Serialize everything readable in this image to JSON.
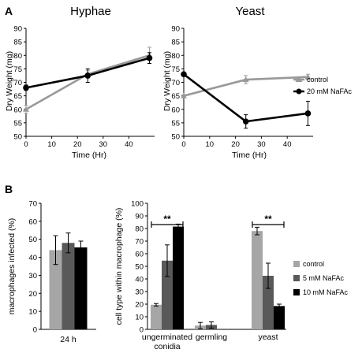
{
  "panel_labels": {
    "a": "A",
    "b": "B"
  },
  "colors": {
    "control": "#999999",
    "nafac": "#000000",
    "bar_control": "#a6a6a6",
    "bar_5mm": "#595959",
    "bar_10mm": "#000000"
  },
  "chart_data": [
    {
      "type": "line",
      "title": "Hyphae",
      "xlabel": "Time (Hr)",
      "ylabel": "Dry Weight (mg)",
      "xlim": [
        0,
        50
      ],
      "ylim": [
        50,
        90
      ],
      "xticks": [
        0,
        10,
        20,
        30,
        40
      ],
      "yticks": [
        50,
        55,
        60,
        65,
        70,
        75,
        80,
        85,
        90
      ],
      "series": [
        {
          "key": "control",
          "x": [
            0,
            24,
            48
          ],
          "y": [
            60,
            73,
            80
          ],
          "err": [
            1.5,
            1.5,
            3
          ],
          "marker": "triangle"
        },
        {
          "key": "nafac",
          "x": [
            0,
            24,
            48
          ],
          "y": [
            68,
            72.5,
            79
          ],
          "err": [
            1,
            2.5,
            2
          ],
          "marker": "circle"
        }
      ]
    },
    {
      "type": "line",
      "title": "Yeast",
      "xlabel": "Time (Hr)",
      "ylabel": "Dry Weight (mg)",
      "xlim": [
        0,
        50
      ],
      "ylim": [
        50,
        90
      ],
      "xticks": [
        0,
        10,
        20,
        30,
        40
      ],
      "yticks": [
        50,
        55,
        60,
        65,
        70,
        75,
        80,
        85,
        90
      ],
      "legend": [
        "control",
        "20 mM NaFAc"
      ],
      "legend_position": "right",
      "series": [
        {
          "key": "control",
          "name": "control",
          "x": [
            0,
            24,
            48
          ],
          "y": [
            65,
            71,
            72
          ],
          "err": [
            0.5,
            1.5,
            1
          ],
          "marker": "triangle"
        },
        {
          "key": "nafac",
          "name": "20 mM NaFAc",
          "x": [
            0,
            24,
            48
          ],
          "y": [
            73,
            55.5,
            58.5
          ],
          "err": [
            0.5,
            2.5,
            4.5
          ],
          "marker": "circle"
        }
      ]
    },
    {
      "type": "bar",
      "ylabel": "macrophages infected (%)",
      "ylim": [
        0,
        70
      ],
      "yticks": [
        0,
        10,
        20,
        30,
        40,
        50,
        60,
        70
      ],
      "categories": [
        "24 h"
      ],
      "series": [
        {
          "key": "bar_control",
          "values": [
            44
          ],
          "err": [
            8
          ]
        },
        {
          "key": "bar_5mm",
          "values": [
            48
          ],
          "err": [
            5.5
          ]
        },
        {
          "key": "bar_10mm",
          "values": [
            45.5
          ],
          "err": [
            3.5
          ]
        }
      ]
    },
    {
      "type": "bar",
      "ylabel": "cell type within macrophage (%)",
      "ylim": [
        0,
        100
      ],
      "yticks": [
        0,
        10,
        20,
        30,
        40,
        50,
        60,
        70,
        80,
        90,
        100
      ],
      "categories": [
        "ungerminated conidia",
        "germling",
        "yeast"
      ],
      "category_lines": [
        [
          "ungerminated",
          "conidia"
        ],
        [
          "germling"
        ],
        [
          "yeast"
        ]
      ],
      "legend": [
        "control",
        "5 mM NaFAc",
        "10 mM NaFAc"
      ],
      "legend_position": "right",
      "series": [
        {
          "key": "bar_control",
          "name": "control",
          "values": [
            19.5,
            3,
            78
          ],
          "err": [
            1,
            2.5,
            3
          ]
        },
        {
          "key": "bar_5mm",
          "name": "5 mM NaFAc",
          "values": [
            54.5,
            3.5,
            42.5
          ],
          "err": [
            12.5,
            2.5,
            10
          ]
        },
        {
          "key": "bar_10mm",
          "name": "10 mM NaFAc",
          "values": [
            81.5,
            0,
            18.5
          ],
          "err": [
            2,
            0,
            1.5
          ]
        }
      ],
      "significance": [
        {
          "category": 0,
          "label": "**"
        },
        {
          "category": 2,
          "label": "**"
        }
      ]
    }
  ]
}
